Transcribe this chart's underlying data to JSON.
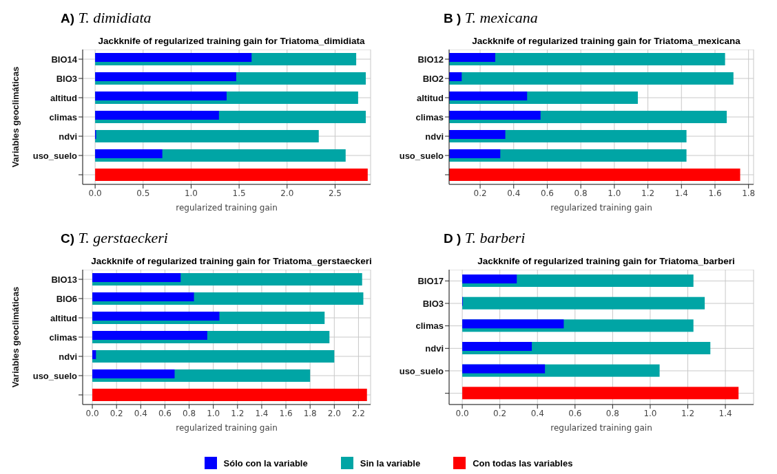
{
  "chart_data": [
    {
      "type": "bar",
      "orientation": "horizontal",
      "title": "A) T. dimidiata",
      "subtitle": "Jackknife of regularized training gain for Triatoma_dimidiata",
      "ylabel": "Variables geoclimáticas",
      "xlabel": "regularized training gain",
      "categories": [
        "BIO14",
        "BIO3",
        "altitud",
        "climas",
        "ndvi",
        "uso_suelo",
        null
      ],
      "xlim": [
        -0.13,
        2.87
      ],
      "xticks": [
        {
          "value": 0,
          "label": "0.0"
        },
        0.5,
        {
          "value": 1,
          "label": "1.0"
        },
        1.5,
        {
          "value": 2,
          "label": "2.0"
        },
        2.5
      ],
      "grid": true,
      "series": [
        {
          "color": "#0000ff",
          "values": [
            1.63,
            1.47,
            1.37,
            1.29,
            0.01,
            0.7,
            null
          ]
        },
        {
          "color": "#00a5a5",
          "values": [
            2.72,
            2.82,
            2.74,
            2.82,
            2.33,
            2.61,
            null
          ]
        },
        {
          "color": "#ff0000",
          "values": [
            null,
            null,
            null,
            null,
            null,
            null,
            2.84
          ]
        }
      ]
    },
    {
      "type": "bar",
      "orientation": "horizontal",
      "title": "B ) T. mexicana",
      "subtitle": "Jackknife of regularized training gain for Triatoma_mexicana",
      "xlabel": "regularized training gain",
      "categories": [
        "BIO12",
        "BIO2",
        "altitud",
        "climas",
        "ndvi",
        "uso_suelo",
        null
      ],
      "xlim": [
        0.015,
        1.83
      ],
      "xticks": [
        0.2,
        0.4,
        0.6,
        0.8,
        {
          "value": 1,
          "label": "1.0"
        },
        1.2,
        1.4,
        1.6,
        1.8
      ],
      "grid": true,
      "series": [
        {
          "color": "#0000ff",
          "values": [
            0.29,
            0.09,
            0.48,
            0.56,
            0.35,
            0.32,
            null
          ]
        },
        {
          "color": "#00a5a5",
          "values": [
            1.66,
            1.71,
            1.14,
            1.67,
            1.43,
            1.43,
            null
          ]
        },
        {
          "color": "#ff0000",
          "values": [
            null,
            null,
            null,
            null,
            null,
            null,
            1.75
          ]
        }
      ]
    },
    {
      "type": "bar",
      "orientation": "horizontal",
      "title": "C) T. gerstaeckeri",
      "subtitle": "Jackknife of regularized training gain for Triatoma_gerstaeckeri",
      "ylabel": "Variables geoclimáticas",
      "xlabel": "regularized training gain",
      "categories": [
        "BIO13",
        "BIO6",
        "altitud",
        "climas",
        "ndvi",
        "uso_suelo",
        null
      ],
      "xlim": [
        -0.08,
        2.3
      ],
      "xticks": [
        {
          "value": 0,
          "label": "0.0"
        },
        0.2,
        0.4,
        0.6,
        0.8,
        {
          "value": 1,
          "label": "1.0"
        },
        1.2,
        1.4,
        1.6,
        1.8,
        {
          "value": 2,
          "label": "2.0"
        },
        2.2
      ],
      "grid": true,
      "series": [
        {
          "color": "#0000ff",
          "values": [
            0.73,
            0.84,
            1.05,
            0.95,
            0.03,
            0.68,
            null
          ]
        },
        {
          "color": "#00a5a5",
          "values": [
            2.23,
            2.24,
            1.92,
            1.96,
            2.0,
            1.8,
            null
          ]
        },
        {
          "color": "#ff0000",
          "values": [
            null,
            null,
            null,
            null,
            null,
            null,
            2.27
          ]
        }
      ]
    },
    {
      "type": "bar",
      "orientation": "horizontal",
      "title": "D ) T. barberi",
      "subtitle": "Jackknife of regularized training gain for Triatoma_barberi",
      "xlabel": "regularized training gain",
      "categories": [
        "BIO17",
        "BIO3",
        "climas",
        "ndvi",
        "uso_suelo",
        null
      ],
      "xlim": [
        -0.07,
        1.55
      ],
      "xticks": [
        {
          "value": 0,
          "label": "0.0"
        },
        0.2,
        0.4,
        0.6,
        0.8,
        {
          "value": 1,
          "label": "1.0"
        },
        1.2,
        1.4
      ],
      "grid": true,
      "legend": "bottom",
      "series": [
        {
          "name": "Sólo con la variable",
          "color": "#0000ff",
          "values": [
            0.29,
            0.003,
            0.54,
            0.37,
            0.44,
            null
          ]
        },
        {
          "name": "Sin la variable",
          "color": "#00a5a5",
          "values": [
            1.23,
            1.29,
            1.23,
            1.32,
            1.05,
            null
          ]
        },
        {
          "name": "Con todas las variables",
          "color": "#ff0000",
          "values": [
            null,
            null,
            null,
            null,
            null,
            1.47
          ]
        }
      ]
    }
  ]
}
